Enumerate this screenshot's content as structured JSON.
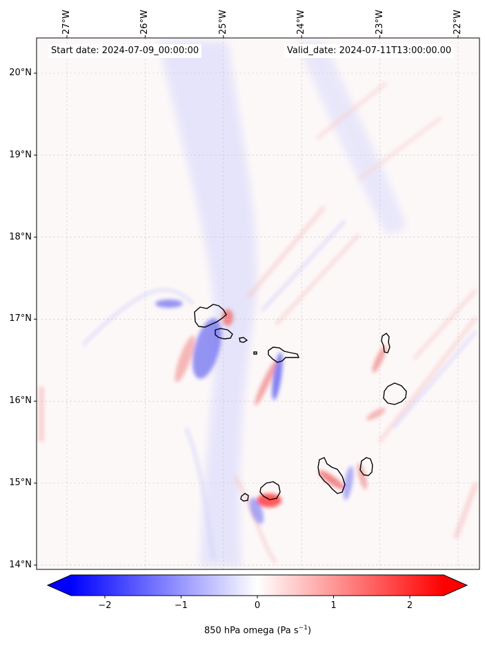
{
  "header": {
    "start_date": "Start date: 2024-07-09_00:00:00",
    "valid_date": "Valid_date: 2024-07-11T13:00:00.00"
  },
  "map": {
    "lon_ticks": [
      "27°W",
      "26°W",
      "25°W",
      "24°W",
      "23°W",
      "22°W"
    ],
    "lon_values": [
      -27,
      -26,
      -25,
      -24,
      -23,
      -22
    ],
    "lat_ticks": [
      "20°N",
      "19°N",
      "18°N",
      "17°N",
      "16°N",
      "15°N",
      "14°N"
    ],
    "lat_values": [
      20,
      19,
      18,
      17,
      16,
      15,
      14
    ],
    "lon_range": [
      -27.4,
      -21.7
    ],
    "lat_range": [
      13.95,
      20.4
    ],
    "gridlines": true,
    "colormap": [
      "#0000ff",
      "#ffffff",
      "#ff0000"
    ],
    "features": [
      "Santo Antão",
      "São Vicente",
      "Santa Luzia",
      "São Nicolau",
      "Sal",
      "Boa Vista",
      "Maio",
      "Santiago",
      "Fogo",
      "Brava"
    ]
  },
  "colorbar": {
    "ticks": [
      "−2",
      "−1",
      "0",
      "1",
      "2"
    ],
    "tick_values": [
      -2,
      -1,
      0,
      1,
      2
    ],
    "range": [
      -2.5,
      2.5
    ],
    "extend": "both",
    "label": "850 hPa omega (Pa s",
    "label_sup": "−1",
    "label_end": ")"
  }
}
